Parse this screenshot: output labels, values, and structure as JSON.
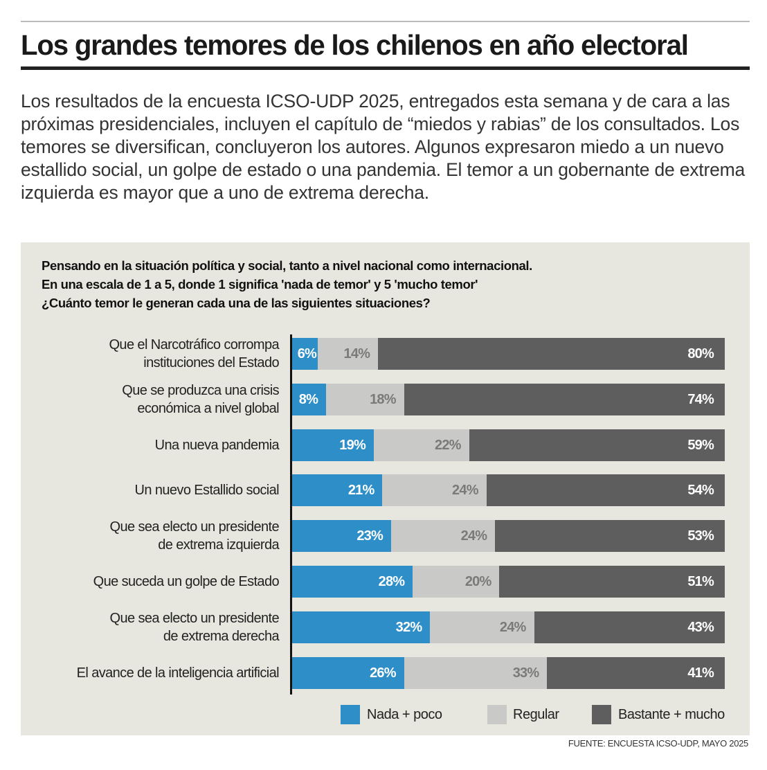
{
  "header": {
    "title": "Los grandes temores de los chilenos en año electoral",
    "intro": "Los resultados de la encuesta ICSO-UDP 2025, entregados esta semana y de cara a las próximas presidenciales, incluyen el capítulo de “miedos y rabias” de los consultados. Los temores se diversifican, concluyeron los autores. Algunos expresaron miedo a un nuevo estallido social, un golpe de estado o una pandemia. El temor a un gobernante de extrema izquierda es mayor que a uno de extrema derecha."
  },
  "chart_data": {
    "type": "bar",
    "orientation": "horizontal",
    "stacked": true,
    "title_lines": [
      "Pensando en la situación política y social, tanto a nivel nacional como internacional.",
      "En una escala de 1 a 5, donde 1 significa 'nada de temor' y 5 'mucho temor'",
      "¿Cuánto temor le generan cada una de las siguientes situaciones?"
    ],
    "categories": [
      [
        "Que el Narcotráfico corrompa",
        "instituciones del Estado"
      ],
      [
        "Que se produzca una crisis",
        "económica a nivel global"
      ],
      [
        "Una nueva pandemia"
      ],
      [
        "Un nuevo Estallido social"
      ],
      [
        "Que sea electo un presidente",
        "de extrema izquierda"
      ],
      [
        "Que suceda un golpe de Estado"
      ],
      [
        "Que sea electo un presidente",
        "de extrema derecha"
      ],
      [
        "El avance de la inteligencia artificial"
      ]
    ],
    "series": [
      {
        "name": "Nada + poco",
        "color": "#2d8ec8",
        "label_color": "#ffffff",
        "values": [
          6,
          8,
          19,
          21,
          23,
          28,
          32,
          26
        ]
      },
      {
        "name": "Regular",
        "color": "#c9c9c7",
        "label_color": "#7a7a7a",
        "values": [
          14,
          18,
          22,
          24,
          24,
          20,
          24,
          33
        ]
      },
      {
        "name": "Bastante + mucho",
        "color": "#5e5e5e",
        "label_color": "#ffffff",
        "values": [
          80,
          74,
          59,
          54,
          53,
          51,
          43,
          41
        ]
      }
    ],
    "value_suffix": "%",
    "xlim": [
      0,
      100
    ],
    "legend": "bottom",
    "grid": false
  },
  "footer": {
    "source": "FUENTE: ENCUESTA ICSO-UDP, MAYO 2025"
  }
}
